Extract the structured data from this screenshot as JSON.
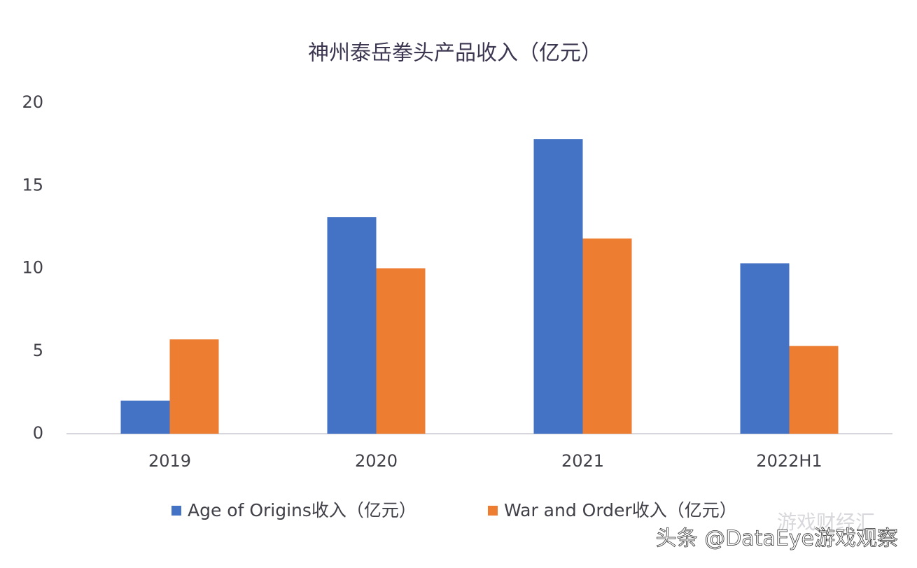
{
  "chart_data": {
    "type": "bar",
    "title": "神州泰岳拳头产品收入（亿元）",
    "categories": [
      "2019",
      "2020",
      "2021",
      "2022H1"
    ],
    "series": [
      {
        "name": "Age of Origins收入（亿元）",
        "color": "#4472c4",
        "values": [
          2.0,
          13.1,
          17.8,
          10.3
        ]
      },
      {
        "name": "War and Order收入（亿元）",
        "color": "#ed7d31",
        "values": [
          5.7,
          10.0,
          11.8,
          5.3
        ]
      }
    ],
    "ylim": [
      0,
      20
    ],
    "yticks": [
      0,
      5,
      10,
      15,
      20
    ],
    "grid": false,
    "legend": "bottom",
    "watermarks": [
      "游戏财经汇",
      "头条 @DataEye游戏观察"
    ]
  }
}
